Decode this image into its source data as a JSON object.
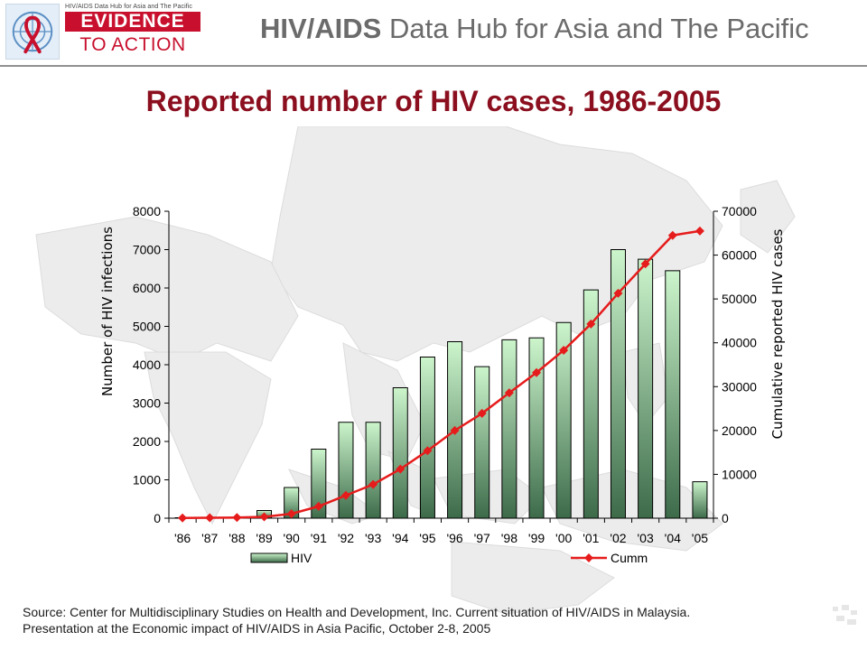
{
  "header": {
    "logo_small_text": "HIV/AIDS Data Hub for Asia and The Pacific",
    "logo_line1": "EVIDENCE",
    "logo_line2": "TO ACTION",
    "banner_bold": "HIV/AIDS",
    "banner_rest": " Data Hub for Asia and The Pacific"
  },
  "colors": {
    "title": "#8b0f1e",
    "bar_top": "#ccf5cc",
    "bar_bottom": "#3d6b4a",
    "line": "#e61c1c",
    "brand_red": "#c8102e"
  },
  "chart_data": {
    "type": "bar",
    "title": "Reported number of HIV cases, 1986-2005",
    "categories": [
      "'86",
      "'87",
      "'88",
      "'89",
      "'90",
      "'91",
      "'92",
      "'93",
      "'94",
      "'95",
      "'96",
      "'97",
      "'98",
      "'99",
      "'00",
      "'01",
      "'02",
      "'03",
      "'04",
      "'05"
    ],
    "ylabel": "Number of HIV infections",
    "y2label": "Cumulative reported HIV cases",
    "ylim": [
      0,
      8000
    ],
    "y2lim": [
      0,
      70000
    ],
    "yticks": [
      0,
      1000,
      2000,
      3000,
      4000,
      5000,
      6000,
      7000,
      8000
    ],
    "y2ticks": [
      0,
      10000,
      20000,
      30000,
      40000,
      50000,
      60000,
      70000
    ],
    "series": [
      {
        "name": "HIV",
        "kind": "bar",
        "axis": "left",
        "values": [
          3,
          3,
          2,
          200,
          800,
          1800,
          2500,
          2500,
          3400,
          4200,
          4600,
          3950,
          4650,
          4700,
          5100,
          5950,
          7000,
          6750,
          6450,
          950
        ]
      },
      {
        "name": "Cumm",
        "kind": "line",
        "axis": "right",
        "values": [
          50,
          100,
          150,
          300,
          1000,
          2700,
          5200,
          7700,
          11200,
          15400,
          20000,
          23900,
          28600,
          33200,
          38300,
          44300,
          51300,
          58000,
          64500,
          65500
        ]
      }
    ],
    "legend_position": "bottom",
    "grid": false
  },
  "source": {
    "line1": "Source: Center for Multidisciplinary Studies on Health and Development, Inc. Current situation of HIV/AIDS in Malaysia.",
    "line2": "Presentation at the Economic impact of HIV/AIDS in Asia Pacific, October 2-8, 2005"
  }
}
